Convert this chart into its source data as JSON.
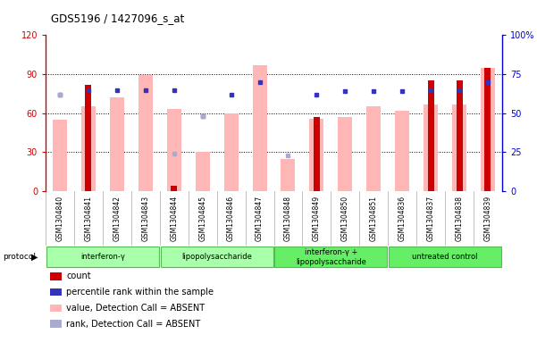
{
  "title": "GDS5196 / 1427096_s_at",
  "samples": [
    "GSM1304840",
    "GSM1304841",
    "GSM1304842",
    "GSM1304843",
    "GSM1304844",
    "GSM1304845",
    "GSM1304846",
    "GSM1304847",
    "GSM1304848",
    "GSM1304849",
    "GSM1304850",
    "GSM1304851",
    "GSM1304836",
    "GSM1304837",
    "GSM1304838",
    "GSM1304839"
  ],
  "count_values": [
    0,
    82,
    0,
    0,
    4,
    0,
    0,
    0,
    0,
    57,
    0,
    0,
    0,
    85,
    85,
    95
  ],
  "pink_values": [
    55,
    65,
    72,
    89,
    63,
    30,
    60,
    97,
    25,
    56,
    57,
    65,
    62,
    67,
    67,
    95
  ],
  "blue_rank_values": [
    62,
    65,
    65,
    65,
    65,
    48,
    62,
    70,
    0,
    62,
    64,
    64,
    64,
    65,
    65,
    70
  ],
  "light_blue_values": [
    62,
    0,
    0,
    0,
    24,
    48,
    0,
    0,
    23,
    0,
    0,
    0,
    0,
    0,
    0,
    0
  ],
  "groups": [
    {
      "label": "interferon-γ",
      "start": 0,
      "end": 4
    },
    {
      "label": "lipopolysaccharide",
      "start": 4,
      "end": 8
    },
    {
      "label": "interferon-γ +\nlipopolysaccharide",
      "start": 8,
      "end": 12
    },
    {
      "label": "untreated control",
      "start": 12,
      "end": 16
    }
  ],
  "ylim_left": [
    0,
    120
  ],
  "ylim_right": [
    0,
    100
  ],
  "left_ticks": [
    0,
    30,
    60,
    90,
    120
  ],
  "right_ticks": [
    0,
    25,
    50,
    75,
    100
  ],
  "left_tick_labels": [
    "0",
    "30",
    "60",
    "90",
    "120"
  ],
  "right_tick_labels": [
    "0",
    "25",
    "50",
    "75",
    "100%"
  ],
  "left_color": "#cc0000",
  "right_color": "#0000cc",
  "count_color": "#cc0000",
  "pink_color": "#ffb6b6",
  "blue_dot_color": "#3333bb",
  "light_blue_color": "#aaaacc",
  "bg_color": "#ffffff",
  "proto_green_light": "#aaffaa",
  "proto_green_dark": "#55dd55",
  "dotted_lines": [
    30,
    60,
    90
  ]
}
